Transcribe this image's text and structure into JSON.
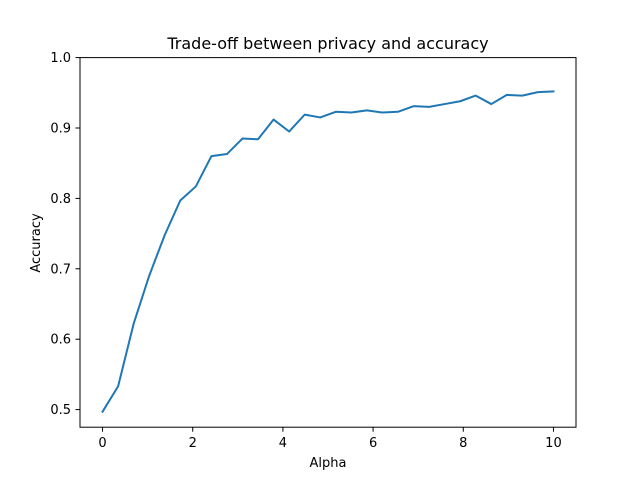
{
  "chart_data": {
    "type": "line",
    "title": "Trade-off between privacy and accuracy",
    "xlabel": "Alpha",
    "ylabel": "Accuracy",
    "xlim": [
      -0.5,
      10.5
    ],
    "ylim": [
      0.475,
      1.0
    ],
    "xticks": [
      0,
      2,
      4,
      6,
      8,
      10
    ],
    "xtick_labels": [
      "0",
      "2",
      "4",
      "6",
      "8",
      "10"
    ],
    "yticks": [
      0.5,
      0.6,
      0.7,
      0.8,
      0.9,
      1.0
    ],
    "ytick_labels": [
      "0.5",
      "0.6",
      "0.7",
      "0.8",
      "0.9",
      "1.0"
    ],
    "grid": false,
    "series": [
      {
        "color": "#1f77b4",
        "x": [
          0.0,
          0.345,
          0.69,
          1.034,
          1.379,
          1.724,
          2.069,
          2.414,
          2.759,
          3.103,
          3.448,
          3.793,
          4.138,
          4.483,
          4.828,
          5.172,
          5.517,
          5.862,
          6.207,
          6.552,
          6.897,
          7.241,
          7.586,
          7.931,
          8.276,
          8.621,
          8.966,
          9.31,
          9.655,
          10.0
        ],
        "y": [
          0.497,
          0.533,
          0.622,
          0.69,
          0.748,
          0.797,
          0.817,
          0.86,
          0.863,
          0.885,
          0.884,
          0.912,
          0.895,
          0.919,
          0.915,
          0.923,
          0.922,
          0.925,
          0.922,
          0.923,
          0.931,
          0.93,
          0.934,
          0.938,
          0.946,
          0.934,
          0.947,
          0.946,
          0.951,
          0.952
        ]
      }
    ]
  }
}
